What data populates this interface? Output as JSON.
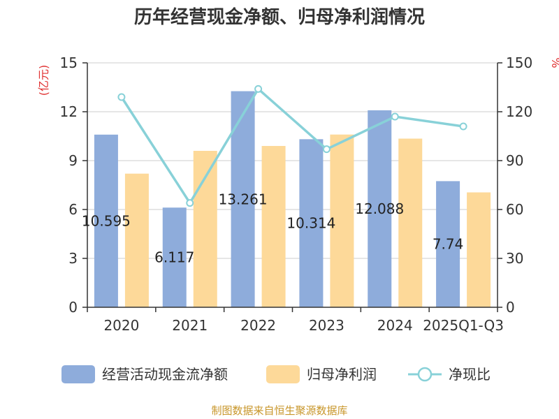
{
  "chart_data": {
    "type": "bar",
    "title": "历年经营现金净额、归母净利润情况",
    "categories": [
      "2020",
      "2021",
      "2022",
      "2023",
      "2024",
      "2025Q1-Q3"
    ],
    "y_left": {
      "unit": "(亿元)",
      "min": 0,
      "max": 15,
      "ticks": [
        0,
        3,
        6,
        9,
        12,
        15
      ]
    },
    "y_right": {
      "unit": "%",
      "min": 0,
      "max": 150,
      "ticks": [
        0,
        30,
        60,
        90,
        120,
        150
      ]
    },
    "series": [
      {
        "name": "经营活动现金流净额",
        "kind": "bar",
        "axis": "left",
        "color": "#8eacdb",
        "values": [
          10.595,
          6.117,
          13.261,
          10.314,
          12.088,
          7.74
        ],
        "labels": [
          "10.595",
          "6.117",
          "13.261",
          "10.314",
          "12.088",
          "7.74"
        ]
      },
      {
        "name": "归母净利润",
        "kind": "bar",
        "axis": "left",
        "color": "#fdd999",
        "values": [
          8.2,
          9.6,
          9.9,
          10.6,
          10.35,
          7.05
        ]
      },
      {
        "name": "净现比",
        "kind": "line",
        "axis": "right",
        "color": "#88d1d8",
        "values": [
          129,
          64,
          134,
          97,
          117,
          111
        ]
      }
    ],
    "grid": true,
    "legend": "bottom"
  },
  "footer": {
    "source": "制图数据来自恒生聚源数据库"
  }
}
